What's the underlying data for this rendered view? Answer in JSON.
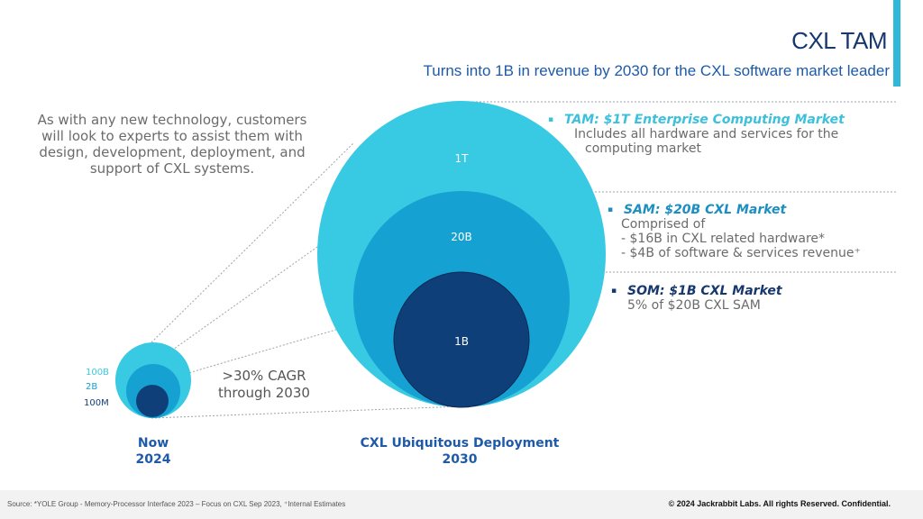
{
  "header": {
    "title": "CXL TAM",
    "subtitle": "Turns into 1B in revenue by 2030 for the CXL software market leader"
  },
  "intro_text": "As with any new technology, customers will look to experts to assist them with design, development, deployment, and support of CXL systems.",
  "colors": {
    "tam": "#38c9e3",
    "sam": "#15a1d2",
    "som": "#0f3f78",
    "title": "#16386e",
    "accent": "#2fb8d8"
  },
  "now": {
    "labels": {
      "tam": "100B",
      "sam": "2B",
      "som": "100M"
    },
    "caption_line1": "Now",
    "caption_line2": "2024"
  },
  "future": {
    "labels": {
      "tam": "1T",
      "sam": "20B",
      "som": "1B"
    },
    "caption_line1": "CXL Ubiquitous Deployment",
    "caption_line2": "2030"
  },
  "growth": {
    "line1": ">30% CAGR",
    "line2": "through 2030"
  },
  "tiers": {
    "tam": {
      "bullet": "▪",
      "heading": "TAM: $1T Enterprise Computing Market",
      "desc_line1": "Includes all hardware and services for the",
      "desc_line2": "computing market"
    },
    "sam": {
      "bullet": "▪",
      "heading": "SAM: $20B CXL Market",
      "desc_line1": "Comprised of",
      "desc_line2": "- $16B in CXL related hardware*",
      "desc_line3": "- $4B of software & services revenue⁺"
    },
    "som": {
      "bullet": "▪",
      "heading": "SOM: $1B CXL Market",
      "desc_line1": "5% of $20B CXL SAM"
    }
  },
  "footer": {
    "source": "Source: *YOLE Group - Memory-Processor Interface 2023 – Focus on CXL Sep 2023, ⁺Internal Estimates",
    "copyright": "© 2024 Jackrabbit Labs. All rights Reserved. Confidential."
  }
}
